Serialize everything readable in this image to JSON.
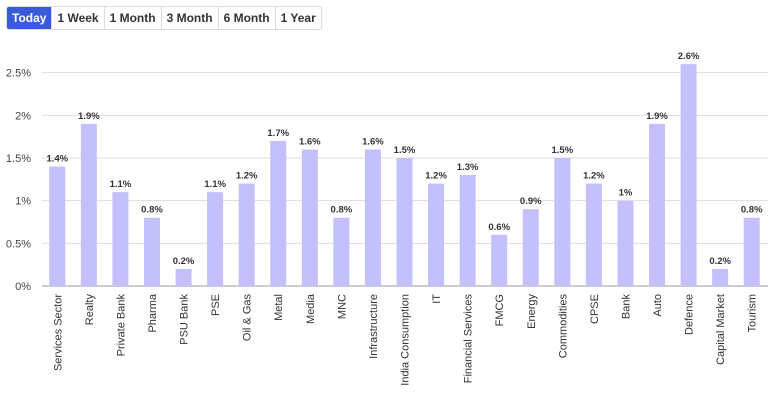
{
  "tabs": [
    {
      "label": "Today",
      "active": true
    },
    {
      "label": "1 Week",
      "active": false
    },
    {
      "label": "1 Month",
      "active": false
    },
    {
      "label": "3 Month",
      "active": false
    },
    {
      "label": "6 Month",
      "active": false
    },
    {
      "label": "1 Year",
      "active": false
    }
  ],
  "colors": {
    "bar": "#c3c0fb",
    "active_tab": "#3a5bd9",
    "grid": "#dddddd"
  },
  "chart_data": {
    "type": "bar",
    "title": "",
    "xlabel": "",
    "ylabel": "",
    "ylim": [
      0,
      3
    ],
    "yticks": [
      "0%",
      "0.5%",
      "1%",
      "1.5%",
      "2%",
      "2.5%"
    ],
    "grid": true,
    "categories": [
      "Services Sector",
      "Realty",
      "Private Bank",
      "Pharma",
      "PSU Bank",
      "PSE",
      "Oil & Gas",
      "Metal",
      "Media",
      "MNC",
      "Infrastructure",
      "India Consumption",
      "IT",
      "Financial Services",
      "FMCG",
      "Energy",
      "Commodities",
      "CPSE",
      "Bank",
      "Auto",
      "Defence",
      "Capital Market",
      "Tourism"
    ],
    "values": [
      1.4,
      1.9,
      1.1,
      0.8,
      0.2,
      1.1,
      1.2,
      1.7,
      1.6,
      0.8,
      1.6,
      1.5,
      1.2,
      1.3,
      0.6,
      0.9,
      1.5,
      1.2,
      1.0,
      1.9,
      2.6,
      0.2,
      0.8
    ],
    "value_labels": [
      "1.4%",
      "1.9%",
      "1.1%",
      "0.8%",
      "0.2%",
      "1.1%",
      "1.2%",
      "1.7%",
      "1.6%",
      "0.8%",
      "1.6%",
      "1.5%",
      "1.2%",
      "1.3%",
      "0.6%",
      "0.9%",
      "1.5%",
      "1.2%",
      "1%",
      "1.9%",
      "2.6%",
      "0.2%",
      "0.8%"
    ]
  }
}
